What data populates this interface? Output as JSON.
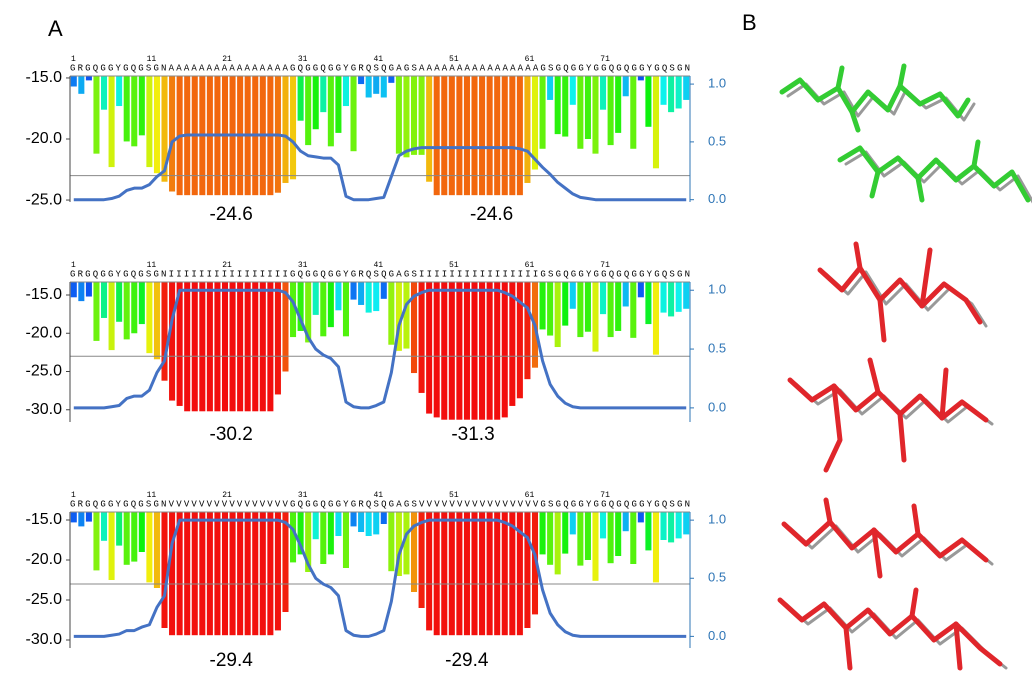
{
  "figure": {
    "labels": [
      "A",
      "B"
    ]
  },
  "chart_data": [
    {
      "type": "bar",
      "sequence": "GRGQGGYGQGSGNAAAAAAAAAAAAAAAAGQGGQGGYGRQSQGAGSAAAAAAAAAAAAAAAAGSGQGGYGGQGQGGYGQSGN",
      "xticks": [
        1,
        11,
        21,
        31,
        41,
        51,
        61,
        71
      ],
      "ylim": [
        -25.16,
        -14.84
      ],
      "yticks": [
        {
          "value": -15,
          "label": "-15.0"
        },
        {
          "value": -20,
          "label": "-20.0"
        },
        {
          "value": -25,
          "label": "-25.0"
        }
      ],
      "y2lim": [
        -0.02,
        1.07
      ],
      "y2ticks": [
        {
          "value": 0,
          "label": "0.0"
        },
        {
          "value": 0.5,
          "label": "0.5"
        },
        {
          "value": 1,
          "label": "1.0"
        }
      ],
      "threshold": -23,
      "values": [
        -15.7,
        -16.3,
        -15.2,
        -21.2,
        -17.6,
        -22.3,
        -17.3,
        -20.2,
        -20.6,
        -19.7,
        -22.3,
        -22.8,
        -23.5,
        -24.3,
        -24.6,
        -24.6,
        -24.6,
        -24.6,
        -24.6,
        -24.6,
        -24.6,
        -24.6,
        -24.6,
        -24.6,
        -24.6,
        -24.6,
        -24.6,
        -24.4,
        -23.6,
        -23.3,
        -18.5,
        -20.5,
        -19.2,
        -17.8,
        -20.6,
        -19.5,
        -17.3,
        -21,
        -15.5,
        -16.6,
        -16.3,
        -16.6,
        -15.4,
        -21.2,
        -21.5,
        -21.3,
        -21.3,
        -23.5,
        -24.6,
        -24.6,
        -24.6,
        -24.6,
        -24.6,
        -24.6,
        -24.6,
        -24.6,
        -24.6,
        -24.6,
        -24.6,
        -24.6,
        -23.6,
        -22.5,
        -20.8,
        -16.8,
        -19.6,
        -19.8,
        -17.2,
        -20.8,
        -20,
        -21.2,
        -17.6,
        -20.5,
        -19.5,
        -16.5,
        -20.8,
        -15.2,
        -19,
        -22.4,
        -17.2,
        -17.8,
        -17.5,
        -16.8
      ],
      "line": {
        "axis": "y2",
        "color": "#4472c4",
        "values": [
          0,
          0,
          0,
          0,
          0,
          0.01,
          0.03,
          0.08,
          0.1,
          0.1,
          0.13,
          0.2,
          0.25,
          0.5,
          0.55,
          0.56,
          0.56,
          0.56,
          0.56,
          0.56,
          0.56,
          0.56,
          0.56,
          0.56,
          0.56,
          0.56,
          0.56,
          0.56,
          0.55,
          0.5,
          0.42,
          0.38,
          0.37,
          0.36,
          0.36,
          0.3,
          0.03,
          0,
          0,
          0,
          0.01,
          0.02,
          0.2,
          0.38,
          0.42,
          0.44,
          0.45,
          0.45,
          0.45,
          0.45,
          0.45,
          0.45,
          0.45,
          0.45,
          0.45,
          0.45,
          0.45,
          0.45,
          0.45,
          0.44,
          0.42,
          0.35,
          0.28,
          0.22,
          0.15,
          0.1,
          0.05,
          0.02,
          0.01,
          0,
          0,
          0,
          0,
          0,
          0,
          0,
          0,
          0,
          0,
          0,
          0,
          0
        ]
      },
      "annotations": [
        "-24.6",
        "-24.6"
      ]
    },
    {
      "type": "bar",
      "sequence": "GRGQGGYGQGSGNIIIIIIIIIIIIIIIIGQGGQGGYGRQSQGAGSIIIIIIIIIIIIIIIIGSGQGGYGGQGQGGYGQSGN",
      "xticks": [
        1,
        11,
        21,
        31,
        41,
        51,
        61,
        71
      ],
      "ylim": [
        -31.6,
        -13.3
      ],
      "yticks": [
        {
          "value": -15,
          "label": "-15.0"
        },
        {
          "value": -20,
          "label": "-20.0"
        },
        {
          "value": -25,
          "label": "-25.0"
        },
        {
          "value": -30,
          "label": "-30.0"
        }
      ],
      "y2lim": [
        -0.12,
        1.07
      ],
      "y2ticks": [
        {
          "value": 0,
          "label": "0.0"
        },
        {
          "value": 0.5,
          "label": "0.5"
        },
        {
          "value": 1,
          "label": "1.0"
        }
      ],
      "threshold": -23,
      "values": [
        -15.3,
        -15.8,
        -15.2,
        -21,
        -18,
        -22.2,
        -18.5,
        -20.8,
        -20,
        -18.8,
        -22.6,
        -23.4,
        -26.2,
        -28.8,
        -29.5,
        -30.2,
        -30.2,
        -30.2,
        -30.2,
        -30.2,
        -30.2,
        -30.2,
        -30.2,
        -30.2,
        -30.2,
        -30.2,
        -30.2,
        -28,
        -25,
        -20.5,
        -19.7,
        -21.2,
        -17.6,
        -20.4,
        -19.2,
        -17,
        -20.4,
        -15.6,
        -16.3,
        -17.3,
        -17.1,
        -15.5,
        -21.5,
        -22.3,
        -22,
        -25.2,
        -27.8,
        -30.5,
        -31,
        -31.3,
        -31.3,
        -31.3,
        -31.3,
        -31.3,
        -31.3,
        -31.3,
        -31.3,
        -31,
        -29.5,
        -28.5,
        -26,
        -24.5,
        -19.5,
        -20.3,
        -21.8,
        -19,
        -16.8,
        -20.5,
        -19.8,
        -22.4,
        -17.5,
        -20.5,
        -19.7,
        -16.5,
        -20.6,
        -15.3,
        -18.8,
        -22.8,
        -17.3,
        -17.8,
        -17.2,
        -16.8
      ],
      "line": {
        "axis": "y2",
        "color": "#4472c4",
        "values": [
          0,
          0,
          0,
          0,
          0,
          0.01,
          0.02,
          0.08,
          0.1,
          0.1,
          0.15,
          0.3,
          0.4,
          0.75,
          1,
          1,
          1,
          1,
          1,
          1,
          1,
          1,
          1,
          1,
          1,
          1,
          1,
          1,
          0.98,
          0.9,
          0.75,
          0.6,
          0.5,
          0.45,
          0.42,
          0.35,
          0.05,
          0.01,
          0,
          0,
          0.02,
          0.05,
          0.3,
          0.7,
          0.88,
          0.95,
          0.98,
          1,
          1,
          1,
          1,
          1,
          1,
          1,
          1,
          1,
          1,
          0.98,
          0.95,
          0.9,
          0.85,
          0.7,
          0.4,
          0.2,
          0.1,
          0.04,
          0.01,
          0,
          0,
          0,
          0,
          0,
          0,
          0,
          0,
          0,
          0,
          0,
          0,
          0,
          0,
          0
        ]
      },
      "annotations": [
        "-30.2",
        "-31.3"
      ]
    },
    {
      "type": "bar",
      "sequence": "GRGQGGYGQGSGNVVVVVVVVVVVVVVVVGQGGQGGYGRQSQGAGSVVVVVVVVVVVVVVVVGSGQGGYGGQGQGGYGQSGN",
      "xticks": [
        1,
        11,
        21,
        31,
        41,
        51,
        61,
        71
      ],
      "ylim": [
        -31,
        -14
      ],
      "yticks": [
        {
          "value": -15,
          "label": "-15.0"
        },
        {
          "value": -20,
          "label": "-20.0"
        },
        {
          "value": -25,
          "label": "-25.0"
        },
        {
          "value": -30,
          "label": "-30.0"
        }
      ],
      "y2lim": [
        -0.1,
        1.07
      ],
      "y2ticks": [
        {
          "value": 0,
          "label": "0.0"
        },
        {
          "value": 0.5,
          "label": "0.5"
        },
        {
          "value": 1,
          "label": "1.0"
        }
      ],
      "threshold": -23,
      "values": [
        -15.3,
        -15.8,
        -15.2,
        -21.3,
        -17.6,
        -22.5,
        -18.2,
        -20.6,
        -20.2,
        -19,
        -22.8,
        -23.5,
        -28.5,
        -29.4,
        -29.4,
        -29.4,
        -29.4,
        -29.4,
        -29.4,
        -29.4,
        -29.4,
        -29.4,
        -29.4,
        -29.4,
        -29.4,
        -29.4,
        -29.4,
        -28.8,
        -26.5,
        -20.3,
        -19.3,
        -21.5,
        -17.4,
        -20.5,
        -19.3,
        -17,
        -21,
        -15.8,
        -16.5,
        -17,
        -16.8,
        -15.5,
        -21.4,
        -22,
        -21.8,
        -24,
        -26,
        -28.8,
        -29.4,
        -29.4,
        -29.4,
        -29.4,
        -29.4,
        -29.4,
        -29.4,
        -29.4,
        -29.4,
        -29.4,
        -29.4,
        -29.4,
        -28.5,
        -26.8,
        -19.3,
        -20.6,
        -21.8,
        -19.2,
        -16.8,
        -20.7,
        -20,
        -22.6,
        -17.3,
        -20.4,
        -19.5,
        -16.4,
        -20.5,
        -15.3,
        -18.8,
        -22.8,
        -17.5,
        -17.8,
        -17.3,
        -16.8
      ],
      "line": {
        "axis": "y2",
        "color": "#4472c4",
        "values": [
          0,
          0,
          0,
          0,
          0,
          0.01,
          0.02,
          0.05,
          0.05,
          0.08,
          0.1,
          0.25,
          0.35,
          0.8,
          1,
          1,
          1,
          1,
          1,
          1,
          1,
          1,
          1,
          1,
          1,
          1,
          1,
          1,
          0.98,
          0.92,
          0.78,
          0.62,
          0.5,
          0.45,
          0.42,
          0.35,
          0.05,
          0.01,
          0,
          0,
          0.02,
          0.05,
          0.3,
          0.7,
          0.88,
          0.95,
          0.98,
          1,
          1,
          1,
          1,
          1,
          1,
          1,
          1,
          1,
          1,
          0.98,
          0.95,
          0.9,
          0.85,
          0.7,
          0.4,
          0.2,
          0.1,
          0.04,
          0.01,
          0,
          0,
          0,
          0,
          0,
          0,
          0,
          0,
          0,
          0,
          0,
          0,
          0,
          0,
          0
        ]
      },
      "annotations": [
        "-29.4",
        "-29.4"
      ]
    }
  ]
}
